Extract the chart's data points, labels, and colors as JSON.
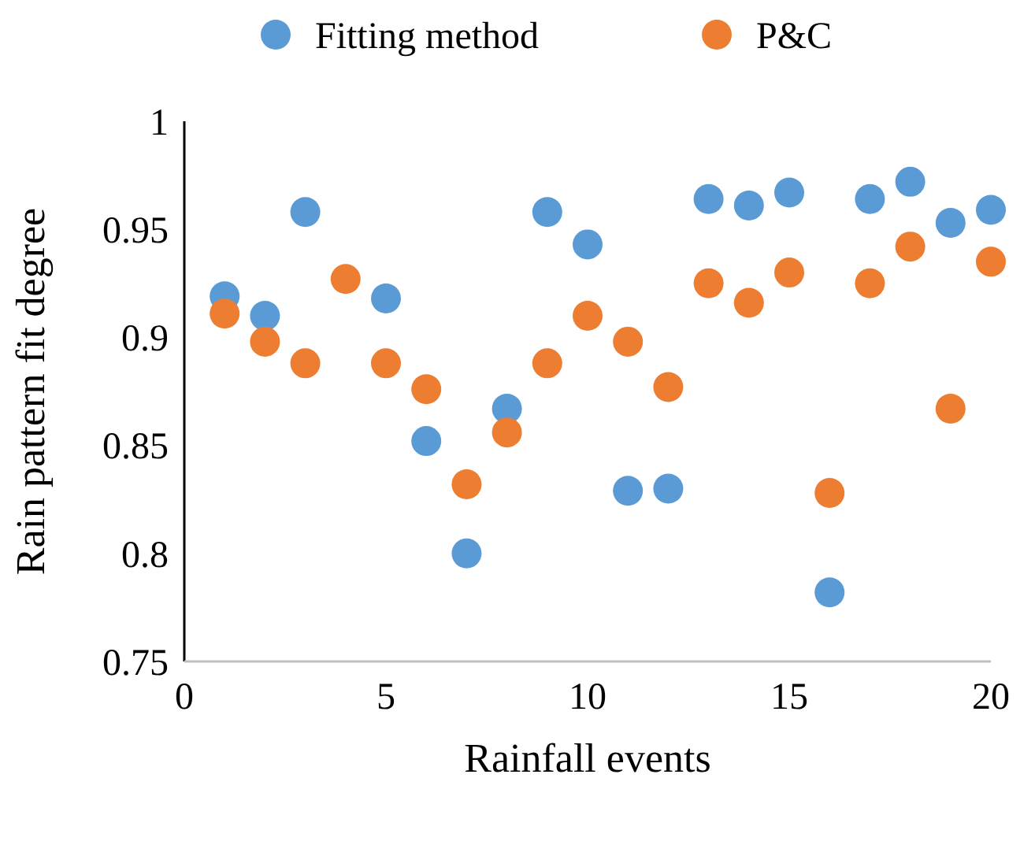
{
  "chart_data": {
    "type": "scatter",
    "xlabel": "Rainfall events",
    "ylabel": "Rain pattern fit degree",
    "xlim": [
      0,
      20
    ],
    "xticks": [
      0,
      5,
      10,
      15,
      20
    ],
    "ylim": [
      0.75,
      1
    ],
    "yticks": [
      0.75,
      0.8,
      0.85,
      0.9,
      0.95,
      1
    ],
    "grid": false,
    "legend": "top",
    "marker": "circle",
    "x": [
      1,
      2,
      3,
      4,
      5,
      6,
      7,
      8,
      9,
      10,
      11,
      12,
      13,
      14,
      15,
      16,
      17,
      18,
      19,
      20
    ],
    "series": [
      {
        "name": "Fitting method",
        "color": "#5b9bd5",
        "values": [
          0.919,
          0.91,
          0.958,
          null,
          0.918,
          0.852,
          0.8,
          0.867,
          0.958,
          0.943,
          0.829,
          0.83,
          0.964,
          0.961,
          0.967,
          0.782,
          0.964,
          0.972,
          0.953,
          0.959
        ]
      },
      {
        "name": "P&C",
        "color": "#ed7d31",
        "values": [
          0.911,
          0.898,
          0.888,
          0.927,
          0.888,
          0.876,
          0.832,
          0.856,
          0.888,
          0.91,
          0.898,
          0.877,
          0.925,
          0.916,
          0.93,
          0.828,
          0.925,
          0.942,
          0.867,
          0.935
        ]
      }
    ]
  }
}
